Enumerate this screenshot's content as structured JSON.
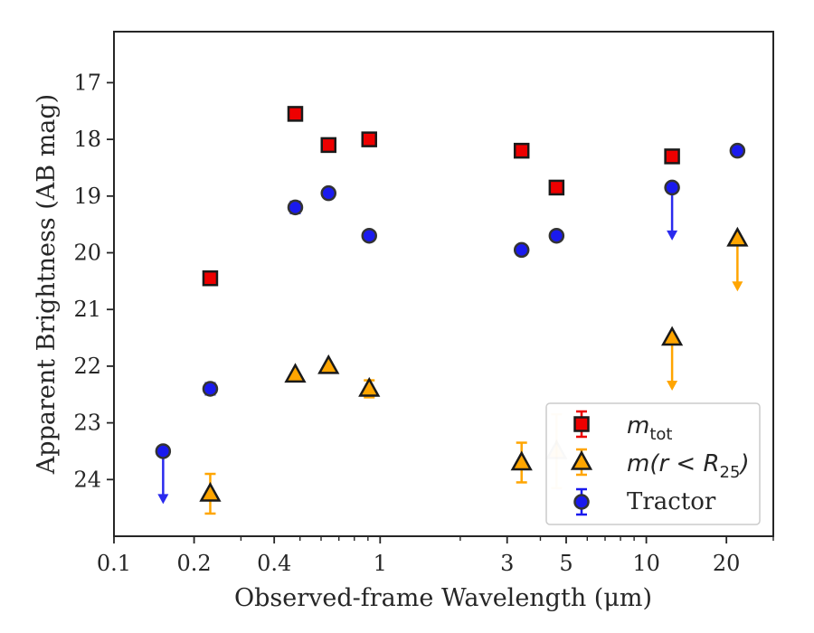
{
  "chart_data": {
    "type": "scatter",
    "xlabel": "Observed-frame Wavelength (μm)",
    "ylabel": "Apparent Brightness (AB mag)",
    "x_scale": "log",
    "xlim": [
      0.1,
      30
    ],
    "ylim": [
      25,
      16.1
    ],
    "y_inverted": true,
    "x_ticks": [
      {
        "v": 0.1,
        "l": "0.1"
      },
      {
        "v": 0.2,
        "l": "0.2"
      },
      {
        "v": 0.4,
        "l": "0.4"
      },
      {
        "v": 1,
        "l": "1"
      },
      {
        "v": 3,
        "l": "3"
      },
      {
        "v": 5,
        "l": "5"
      },
      {
        "v": 10,
        "l": "10"
      },
      {
        "v": 20,
        "l": "20"
      }
    ],
    "x_minor_ticks": [
      0.3,
      0.5,
      0.6,
      0.7,
      0.8,
      0.9,
      2,
      4,
      6,
      7,
      8,
      9,
      30
    ],
    "y_ticks": [
      17,
      18,
      19,
      20,
      21,
      22,
      23,
      24
    ],
    "grid": false,
    "legend_position": "bottom-right",
    "series": [
      {
        "name": "m_tot",
        "marker": "square",
        "color": "#ee0000",
        "edge": "#1a1a1a",
        "points": [
          {
            "x": 0.23,
            "y": 20.45
          },
          {
            "x": 0.48,
            "y": 17.55
          },
          {
            "x": 0.64,
            "y": 18.1
          },
          {
            "x": 0.91,
            "y": 18.0
          },
          {
            "x": 3.4,
            "y": 18.2
          },
          {
            "x": 4.6,
            "y": 18.85
          },
          {
            "x": 12.5,
            "y": 18.3
          }
        ]
      },
      {
        "name": "m(r < R_25)",
        "marker": "triangle",
        "color": "#ffa500",
        "edge": "#1a1a1a",
        "points": [
          {
            "x": 0.23,
            "y": 24.25,
            "err": 0.35
          },
          {
            "x": 0.48,
            "y": 22.15
          },
          {
            "x": 0.64,
            "y": 22.0
          },
          {
            "x": 0.91,
            "y": 22.4,
            "err": 0.15
          },
          {
            "x": 3.4,
            "y": 23.7,
            "err": 0.35
          },
          {
            "x": 4.6,
            "y": 23.5,
            "err": 0.65,
            "faded": true
          },
          {
            "x": 12.5,
            "y": 21.5,
            "upper_limit": 22.4
          },
          {
            "x": 22,
            "y": 19.75,
            "upper_limit": 20.65
          }
        ]
      },
      {
        "name": "Tractor",
        "marker": "circle",
        "color": "#1a1aee",
        "edge": "#333333",
        "points": [
          {
            "x": 0.153,
            "y": 23.5,
            "upper_limit": 24.4
          },
          {
            "x": 0.23,
            "y": 22.4,
            "err": 0.1
          },
          {
            "x": 0.48,
            "y": 19.2,
            "err": 0.1
          },
          {
            "x": 0.64,
            "y": 18.95,
            "err": 0.08
          },
          {
            "x": 0.91,
            "y": 19.7
          },
          {
            "x": 3.4,
            "y": 19.95,
            "err": 0.08
          },
          {
            "x": 4.6,
            "y": 19.7
          },
          {
            "x": 12.5,
            "y": 18.85,
            "upper_limit": 19.75
          },
          {
            "x": 22,
            "y": 18.2
          }
        ]
      }
    ]
  },
  "legend": [
    {
      "marker": "square",
      "math": "m",
      "sub": "tot",
      "tail": ""
    },
    {
      "marker": "triangle",
      "math": "m",
      "sub": "",
      "tail": "(r < R",
      "sub2": "25",
      "tail2": ")"
    },
    {
      "marker": "circle",
      "text": "Tractor"
    }
  ]
}
